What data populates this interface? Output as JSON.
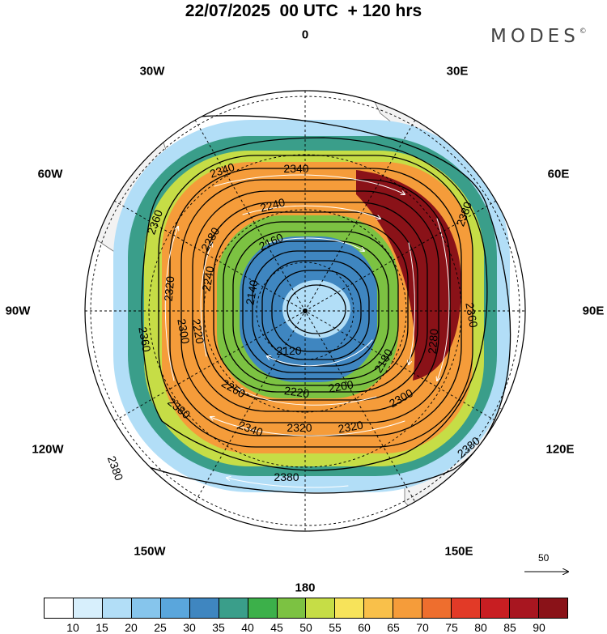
{
  "header": {
    "title": "22/07/2025  00 UTC  + 120 hrs",
    "brand": "MODES",
    "brand_mark": "©"
  },
  "map": {
    "projection": "south polar stereographic",
    "longitude_labels": {
      "top": "0",
      "top_right": "30E",
      "right_upper": "60E",
      "right": "90E",
      "right_lower": "120E",
      "bottom_right": "150E",
      "bottom": "180",
      "bottom_left": "150W",
      "left_lower": "120W",
      "left": "90W",
      "left_upper": "60W",
      "top_left": "30W"
    },
    "wind_speed_bands": {
      "outer_band": 15,
      "mid_band": 35,
      "inner_band": 50,
      "core_band": 65,
      "jet_max_band": 90,
      "center_band": 30
    },
    "contour_labels": [
      {
        "id": "c2340a",
        "text": "2340"
      },
      {
        "id": "c2340b",
        "text": "2340"
      },
      {
        "id": "c2240a",
        "text": "2240"
      },
      {
        "id": "c2160",
        "text": "2160"
      },
      {
        "id": "c2360a",
        "text": "2360"
      },
      {
        "id": "c2280a",
        "text": "2280"
      },
      {
        "id": "c2380a",
        "text": "2380"
      },
      {
        "id": "c2320a",
        "text": "2320"
      },
      {
        "id": "c2240b",
        "text": "2240"
      },
      {
        "id": "c2140",
        "text": "2140"
      },
      {
        "id": "c2360b",
        "text": "2360"
      },
      {
        "id": "c2220a",
        "text": "2220"
      },
      {
        "id": "c2300a",
        "text": "2300"
      },
      {
        "id": "c2280b",
        "text": "2280"
      },
      {
        "id": "c2120",
        "text": "2120"
      },
      {
        "id": "c2180",
        "text": "2180"
      },
      {
        "id": "c2360c",
        "text": "2360"
      },
      {
        "id": "c2260",
        "text": "2260"
      },
      {
        "id": "c2220b",
        "text": "2220"
      },
      {
        "id": "c2200",
        "text": "2200"
      },
      {
        "id": "c2380b",
        "text": "2380"
      },
      {
        "id": "c2300b",
        "text": "2300"
      },
      {
        "id": "c2340c",
        "text": "2340"
      },
      {
        "id": "c2320b",
        "text": "2320"
      },
      {
        "id": "c2320c",
        "text": "2320"
      },
      {
        "id": "c2380c",
        "text": "2380"
      },
      {
        "id": "c2380d",
        "text": "2380"
      },
      {
        "id": "c2380e",
        "text": "2380"
      }
    ],
    "reference_vector": {
      "label": "50"
    }
  },
  "colorbar": {
    "colors": [
      "#ffffff",
      "#d7effc",
      "#b2def7",
      "#86c5ec",
      "#5aa6dc",
      "#3f86c0",
      "#3a9e8a",
      "#3cb04a",
      "#7cc242",
      "#c6dd46",
      "#f7e35a",
      "#f9c04a",
      "#f59c3a",
      "#ee6e2e",
      "#e23a27",
      "#c81e22",
      "#a81620",
      "#8a1218"
    ],
    "ticks": [
      "10",
      "15",
      "20",
      "25",
      "30",
      "35",
      "40",
      "45",
      "50",
      "55",
      "60",
      "65",
      "70",
      "75",
      "80",
      "85",
      "90"
    ]
  }
}
